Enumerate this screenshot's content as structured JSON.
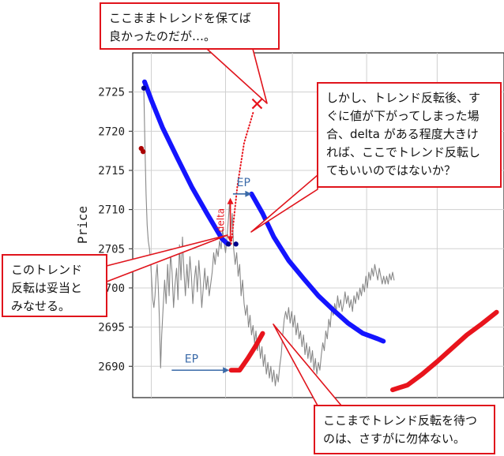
{
  "chart_data": {
    "type": "line",
    "title": "",
    "xlabel": "",
    "ylabel": "Price",
    "ylim": [
      2686.0,
      2730.0
    ],
    "yticks": [
      2690,
      2695,
      2700,
      2705,
      2710,
      2715,
      2720,
      2725
    ],
    "grid": true,
    "x_range": [
      0,
      100
    ],
    "series": [
      {
        "kind": "price",
        "color": "#888888",
        "points": [
          [
            3.0,
            2725.2
          ],
          [
            3.3,
            2718.0
          ],
          [
            3.6,
            2712.0
          ],
          [
            3.9,
            2708.0
          ],
          [
            4.2,
            2706.0
          ],
          [
            4.5,
            2705.0
          ],
          [
            4.8,
            2703.5
          ],
          [
            5.1,
            2701.0
          ],
          [
            5.4,
            2698.5
          ],
          [
            5.7,
            2697.5
          ],
          [
            6.0,
            2699.0
          ],
          [
            6.3,
            2701.5
          ],
          [
            6.6,
            2703.0
          ],
          [
            6.9,
            2700.0
          ],
          [
            7.2,
            2696.0
          ],
          [
            7.5,
            2689.8
          ],
          [
            7.8,
            2694.0
          ],
          [
            8.2,
            2697.5
          ],
          [
            8.6,
            2701.0
          ],
          [
            9.0,
            2698.0
          ],
          [
            9.4,
            2703.0
          ],
          [
            9.8,
            2699.0
          ],
          [
            10.2,
            2704.5
          ],
          [
            10.6,
            2702.0
          ],
          [
            11.0,
            2697.5
          ],
          [
            11.4,
            2700.5
          ],
          [
            11.8,
            2702.5
          ],
          [
            12.2,
            2698.5
          ],
          [
            12.6,
            2705.5
          ],
          [
            13.0,
            2701.0
          ],
          [
            13.4,
            2706.5
          ],
          [
            13.8,
            2702.0
          ],
          [
            14.2,
            2699.0
          ],
          [
            14.6,
            2703.0
          ],
          [
            15.0,
            2700.0
          ],
          [
            15.4,
            2704.0
          ],
          [
            15.8,
            2701.5
          ],
          [
            16.2,
            2698.0
          ],
          [
            16.6,
            2701.0
          ],
          [
            17.0,
            2702.8
          ],
          [
            17.4,
            2699.5
          ],
          [
            17.8,
            2703.5
          ],
          [
            18.2,
            2701.0
          ],
          [
            18.6,
            2697.5
          ],
          [
            19.0,
            2700.0
          ],
          [
            19.4,
            2702.5
          ],
          [
            19.8,
            2699.8
          ],
          [
            20.2,
            2701.5
          ],
          [
            20.6,
            2699.0
          ],
          [
            21.0,
            2700.5
          ],
          [
            21.4,
            2702.0
          ],
          [
            21.8,
            2704.5
          ],
          [
            22.2,
            2703.0
          ],
          [
            22.6,
            2705.0
          ],
          [
            23.0,
            2704.0
          ],
          [
            23.4,
            2706.0
          ],
          [
            23.8,
            2705.0
          ],
          [
            24.2,
            2707.5
          ],
          [
            24.6,
            2706.0
          ],
          [
            25.0,
            2704.5
          ],
          [
            25.4,
            2706.5
          ],
          [
            25.8,
            2709.0
          ],
          [
            26.1,
            2711.0
          ],
          [
            26.4,
            2707.0
          ],
          [
            26.8,
            2709.5
          ],
          [
            27.2,
            2705.0
          ],
          [
            27.6,
            2703.0
          ],
          [
            28.0,
            2704.5
          ],
          [
            28.4,
            2701.5
          ],
          [
            28.8,
            2703.0
          ],
          [
            29.2,
            2699.0
          ],
          [
            29.6,
            2701.0
          ],
          [
            30.0,
            2698.0
          ],
          [
            30.4,
            2696.5
          ],
          [
            30.8,
            2697.8
          ],
          [
            31.2,
            2695.0
          ],
          [
            31.6,
            2696.5
          ],
          [
            32.0,
            2694.0
          ],
          [
            32.4,
            2695.2
          ],
          [
            32.8,
            2693.0
          ],
          [
            33.2,
            2694.5
          ],
          [
            33.6,
            2692.0
          ],
          [
            34.0,
            2693.2
          ],
          [
            34.4,
            2691.0
          ],
          [
            34.8,
            2692.5
          ],
          [
            35.2,
            2690.0
          ],
          [
            35.6,
            2691.5
          ],
          [
            36.0,
            2689.0
          ],
          [
            36.4,
            2690.5
          ],
          [
            36.8,
            2688.5
          ],
          [
            37.2,
            2690.0
          ],
          [
            37.6,
            2688.0
          ],
          [
            38.0,
            2689.5
          ],
          [
            38.4,
            2687.5
          ],
          [
            38.8,
            2689.0
          ],
          [
            39.2,
            2688.0
          ],
          [
            39.6,
            2690.0
          ],
          [
            40.0,
            2691.5
          ],
          [
            40.4,
            2694.0
          ],
          [
            40.8,
            2696.0
          ],
          [
            41.2,
            2697.0
          ],
          [
            41.6,
            2696.0
          ],
          [
            42.0,
            2697.5
          ],
          [
            42.4,
            2695.5
          ],
          [
            42.8,
            2697.0
          ],
          [
            43.2,
            2695.0
          ],
          [
            43.6,
            2696.5
          ],
          [
            44.0,
            2694.0
          ],
          [
            44.4,
            2695.5
          ],
          [
            44.8,
            2693.5
          ],
          [
            45.2,
            2694.5
          ],
          [
            45.6,
            2692.5
          ],
          [
            46.0,
            2694.0
          ],
          [
            46.4,
            2691.5
          ],
          [
            46.8,
            2693.0
          ],
          [
            47.2,
            2691.0
          ],
          [
            47.6,
            2692.5
          ],
          [
            48.0,
            2690.5
          ],
          [
            48.4,
            2692.0
          ],
          [
            48.8,
            2689.5
          ],
          [
            49.2,
            2691.0
          ],
          [
            49.6,
            2689.0
          ],
          [
            50.0,
            2690.5
          ],
          [
            50.4,
            2689.5
          ],
          [
            50.8,
            2691.5
          ],
          [
            51.2,
            2693.0
          ],
          [
            51.6,
            2692.0
          ],
          [
            52.0,
            2694.5
          ],
          [
            52.4,
            2693.5
          ],
          [
            52.8,
            2696.0
          ],
          [
            53.2,
            2695.0
          ],
          [
            53.6,
            2697.5
          ],
          [
            54.0,
            2696.5
          ],
          [
            54.4,
            2698.0
          ],
          [
            54.8,
            2697.0
          ],
          [
            55.2,
            2699.0
          ],
          [
            55.6,
            2697.5
          ],
          [
            56.0,
            2698.5
          ],
          [
            56.4,
            2697.0
          ],
          [
            56.8,
            2698.0
          ],
          [
            57.2,
            2699.5
          ],
          [
            57.6,
            2698.0
          ],
          [
            58.0,
            2699.0
          ],
          [
            58.4,
            2697.5
          ],
          [
            58.8,
            2698.5
          ],
          [
            59.2,
            2697.0
          ],
          [
            59.6,
            2699.0
          ],
          [
            60.0,
            2698.0
          ],
          [
            60.4,
            2699.5
          ],
          [
            60.8,
            2698.5
          ],
          [
            61.2,
            2700.0
          ],
          [
            61.6,
            2699.0
          ],
          [
            62.0,
            2700.5
          ],
          [
            62.4,
            2699.5
          ],
          [
            62.8,
            2701.5
          ],
          [
            63.2,
            2700.0
          ],
          [
            63.6,
            2702.0
          ],
          [
            64.0,
            2701.0
          ],
          [
            64.4,
            2702.5
          ],
          [
            64.8,
            2701.5
          ],
          [
            65.2,
            2703.0
          ],
          [
            65.6,
            2702.0
          ],
          [
            66.0,
            2701.0
          ],
          [
            66.4,
            2702.5
          ],
          [
            66.8,
            2701.5
          ],
          [
            67.2,
            2700.5
          ],
          [
            67.6,
            2701.5
          ],
          [
            68.0,
            2700.5
          ],
          [
            68.4,
            2701.5
          ],
          [
            68.8,
            2700.5
          ],
          [
            69.2,
            2701.8
          ],
          [
            69.6,
            2701.0
          ],
          [
            70.0,
            2702.0
          ],
          [
            70.4,
            2701.0
          ]
        ]
      },
      {
        "kind": "blue-trend-1",
        "color": "#1414ff",
        "points": [
          [
            3.2,
            2726.3
          ],
          [
            5,
            2724.0
          ],
          [
            8,
            2720.5
          ],
          [
            12,
            2716.6
          ],
          [
            16,
            2712.8
          ],
          [
            20,
            2709.5
          ],
          [
            24,
            2706.3
          ],
          [
            25.6,
            2705.6
          ]
        ]
      },
      {
        "kind": "blue-trend-2",
        "color": "#1414ff",
        "points": [
          [
            32,
            2712.0
          ],
          [
            35,
            2709.5
          ],
          [
            38,
            2706.5
          ],
          [
            42,
            2703.5
          ],
          [
            46,
            2701.2
          ],
          [
            50,
            2699.0
          ],
          [
            54,
            2697.2
          ],
          [
            58,
            2695.5
          ],
          [
            62,
            2694.2
          ],
          [
            66,
            2693.5
          ],
          [
            67.5,
            2693.2
          ]
        ]
      },
      {
        "kind": "red-trend-1",
        "color": "#e8141c",
        "points": [
          [
            26.5,
            2689.5
          ],
          [
            28.8,
            2689.5
          ],
          [
            31,
            2691.0
          ],
          [
            33,
            2692.5
          ],
          [
            35,
            2694.2
          ]
        ]
      },
      {
        "kind": "red-trend-2",
        "color": "#e8141c",
        "points": [
          [
            70,
            2687.0
          ],
          [
            74,
            2687.6
          ],
          [
            78,
            2689.0
          ],
          [
            82,
            2690.6
          ],
          [
            86,
            2692.3
          ],
          [
            90,
            2694.0
          ],
          [
            94,
            2695.4
          ],
          [
            98,
            2696.9
          ]
        ]
      }
    ],
    "dots": [
      {
        "x": 2.3,
        "y": 2717.8,
        "color": "#aa0000"
      },
      {
        "x": 2.8,
        "y": 2717.4,
        "color": "#aa0000"
      },
      {
        "x": 3.0,
        "y": 2725.5,
        "color": "#00008b"
      },
      {
        "x": 25.8,
        "y": 2705.6,
        "color": "#00008b"
      },
      {
        "x": 27.8,
        "y": 2705.6,
        "color": "#00008b"
      }
    ],
    "hypothetical_path": [
      [
        26.5,
        2705.6
      ],
      [
        28.2,
        2713.0
      ],
      [
        30.0,
        2718.5
      ],
      [
        32.5,
        2722.5
      ]
    ],
    "x_mark": {
      "x": 33.5,
      "y": 2723.5,
      "color": "#e8141c"
    },
    "ep_labels": [
      {
        "text": "EP",
        "x0": 10.5,
        "x1": 26.0,
        "y": 2689.5,
        "label_x": 14.0,
        "label_y": 2690.5
      },
      {
        "text": "EP",
        "x0": 27.0,
        "x1": 32.0,
        "y": 2712.0,
        "label_x": 28.0,
        "label_y": 2713.0
      }
    ],
    "delta_label": {
      "text": "delta",
      "x": 26.3,
      "y0": 2705.8,
      "y1": 2711.5
    }
  },
  "callouts": [
    {
      "text": "ここままトレンドを保てば\n良かったのだが…。"
    },
    {
      "text": "しかし、トレンド反転後、す\nぐに値が下がってしまった場\n合、delta がある程度大きけ\nれば、ここでトレンド反転し\nてもいいのではないか？"
    },
    {
      "text": "このトレンド\n反転は妥当と\nみなせる。"
    },
    {
      "text": "ここまでトレンド反転を待つ\nのは、さすがに勿体ない。"
    }
  ]
}
